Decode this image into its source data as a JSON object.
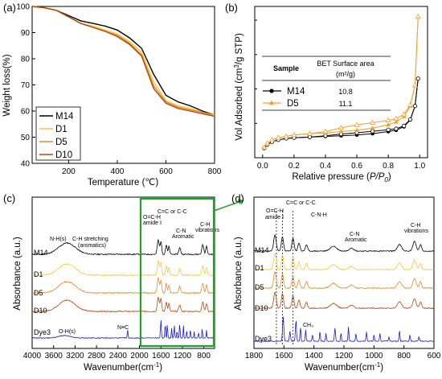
{
  "figure": {
    "panel_labels": [
      "(a)",
      "(b)",
      "(c)",
      "(d)"
    ],
    "inset_table": {
      "col1": "Sample",
      "col2_line1": "BET Surface area",
      "col2_line2": "(m²/g)",
      "rows": [
        {
          "name": "M14",
          "value": "10.8"
        },
        {
          "name": "D5",
          "value": "11.1"
        }
      ]
    },
    "c_annotations": {
      "nh_s": "N-H(s)",
      "ch_stretch": "C-H stretching",
      "aromatics": "(aromatics)",
      "ch_stretch_full": "C-H stretching",
      "ocs_h": "O=C-H",
      "amide": "amide Ⅰ",
      "cc": "C=C or C-C",
      "cn": "C-N",
      "aromatic": "Aromatic",
      "ch": "C-H",
      "vibrations": "vibrations",
      "oh": "O-H(s)",
      "nc": "N≡C"
    },
    "d_annotations": {
      "ocs_h": "O=C-H",
      "amide": "amide Ⅰ",
      "cc": "C=C or C-C",
      "cnh": "C-N-H",
      "cn": "C-N",
      "aromatic": "Aromatic",
      "ch": "C-H",
      "vibrations": "vibrations",
      "ch3": "CH₃"
    }
  },
  "colors": {
    "M14": "#000000",
    "D1": "#f5c842",
    "D5": "#e8882a",
    "D10": "#b04a12",
    "Dye3": "#1a1ad6",
    "box": "#22a02a"
  },
  "chart_data": [
    {
      "type": "line",
      "title": "(a)",
      "xlabel": "Temperature (℃)",
      "ylabel": "Weight loss(%)",
      "xlim": [
        50,
        800
      ],
      "ylim": [
        40,
        100
      ],
      "xticks": [
        200,
        400,
        600,
        800
      ],
      "yticks": [
        40,
        50,
        60,
        70,
        80,
        90,
        100
      ],
      "legend": "bottom-left",
      "series": [
        {
          "name": "M14",
          "x": [
            50,
            100,
            150,
            200,
            250,
            300,
            350,
            400,
            450,
            500,
            550,
            600,
            650,
            700,
            750,
            800
          ],
          "y": [
            100,
            99.5,
            98.5,
            96.5,
            94.5,
            93.5,
            92.5,
            91,
            88,
            84,
            74,
            66,
            63.5,
            62,
            60,
            58.5
          ]
        },
        {
          "name": "D1",
          "x": [
            50,
            100,
            150,
            200,
            250,
            300,
            350,
            400,
            450,
            500,
            550,
            600,
            650,
            700,
            750,
            800
          ],
          "y": [
            100,
            99.5,
            98.5,
            96,
            93.5,
            92.5,
            91,
            89.5,
            86.5,
            82.5,
            71,
            64,
            62,
            61,
            59.5,
            58.5
          ]
        },
        {
          "name": "D5",
          "x": [
            50,
            100,
            150,
            200,
            250,
            300,
            350,
            400,
            450,
            500,
            550,
            600,
            650,
            700,
            750,
            800
          ],
          "y": [
            100,
            99.5,
            98.5,
            96,
            93.5,
            92,
            90.5,
            89,
            86,
            81.5,
            69.5,
            63.5,
            61.5,
            60.5,
            59.5,
            58
          ]
        },
        {
          "name": "D10",
          "x": [
            50,
            100,
            150,
            200,
            250,
            300,
            350,
            400,
            450,
            500,
            550,
            600,
            650,
            700,
            750,
            800
          ],
          "y": [
            100,
            99.5,
            98.5,
            96,
            93.5,
            92,
            90.5,
            88.5,
            85.5,
            81,
            68.5,
            63,
            61,
            60,
            59,
            58
          ]
        }
      ]
    },
    {
      "type": "line",
      "title": "(b)",
      "xlabel": "Relative pressure (P/P0)",
      "ylabel": "Vol Adsorbed (cm³/g STP)",
      "xlim": [
        -0.05,
        1.05
      ],
      "ylim": [
        0,
        22
      ],
      "xticks": [
        0.0,
        0.2,
        0.4,
        0.6,
        0.8,
        1.0
      ],
      "series": [
        {
          "name": "M14",
          "x": [
            0.01,
            0.03,
            0.06,
            0.1,
            0.15,
            0.2,
            0.3,
            0.4,
            0.5,
            0.6,
            0.7,
            0.8,
            0.85,
            0.9,
            0.94,
            0.97,
            0.99
          ],
          "y": [
            1.4,
            1.9,
            2.3,
            2.6,
            2.8,
            2.9,
            3.0,
            3.1,
            3.2,
            3.3,
            3.5,
            3.8,
            4.0,
            4.5,
            5.5,
            7.5,
            11.5
          ]
        },
        {
          "name": "D5",
          "x": [
            0.01,
            0.03,
            0.06,
            0.1,
            0.15,
            0.2,
            0.3,
            0.4,
            0.5,
            0.6,
            0.7,
            0.8,
            0.85,
            0.9,
            0.94,
            0.97,
            0.99
          ],
          "y": [
            1.5,
            2.1,
            2.6,
            2.9,
            3.1,
            3.3,
            3.5,
            3.6,
            3.8,
            4.0,
            4.3,
            4.8,
            5.2,
            6.0,
            7.5,
            10.5,
            20.5
          ]
        }
      ]
    },
    {
      "type": "line",
      "title": "(c)",
      "xlabel": "Wavenumber(cm⁻¹)",
      "ylabel": "Absorbance (a.u.)",
      "xlim": [
        4000,
        600
      ],
      "xticks": [
        4000,
        3600,
        3200,
        2800,
        2400,
        2000,
        1600,
        1200,
        800
      ],
      "series_labels": [
        "M14",
        "D1",
        "D5",
        "D10",
        "Dye3"
      ]
    },
    {
      "type": "line",
      "title": "(d)",
      "xlabel": "Wavenumber(cm⁻¹)",
      "ylabel": "Absorbance (a.u.)",
      "xlim": [
        1800,
        600
      ],
      "xticks": [
        1800,
        1600,
        1400,
        1200,
        1000,
        800,
        600
      ],
      "series_labels": [
        "M14",
        "D1",
        "D5",
        "D10",
        "Dye3"
      ]
    }
  ]
}
